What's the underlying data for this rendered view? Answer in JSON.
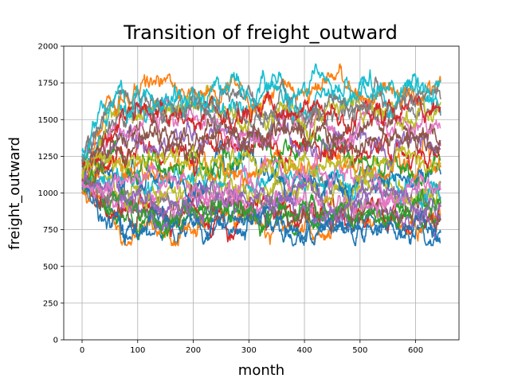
{
  "chart_data": {
    "type": "line",
    "title": "Transition of freight_outward",
    "xlabel": "month",
    "ylabel": "freight_outward",
    "xlim": [
      -33,
      678
    ],
    "ylim": [
      0,
      2000
    ],
    "xticks": [
      0,
      100,
      200,
      300,
      400,
      500,
      600
    ],
    "yticks": [
      0,
      250,
      500,
      750,
      1000,
      1250,
      1500,
      1750,
      2000
    ],
    "grid": true,
    "legend": "none",
    "n_points": 646,
    "x_range": [
      0,
      645
    ],
    "colors": [
      "#1f77b4",
      "#ff7f0e",
      "#2ca02c",
      "#d62728",
      "#9467bd",
      "#8c564b",
      "#e377c2",
      "#7f7f7f",
      "#bcbd22",
      "#17becf"
    ],
    "series": [
      {
        "start": 1050,
        "level": 760,
        "min": 640,
        "max": 1880
      },
      {
        "start": 1080,
        "level": 790,
        "min": 640,
        "max": 1880
      },
      {
        "start": 1100,
        "level": 820,
        "min": 640,
        "max": 1880
      },
      {
        "start": 1020,
        "level": 850,
        "min": 640,
        "max": 1880
      },
      {
        "start": 1120,
        "level": 880,
        "min": 640,
        "max": 1880
      },
      {
        "start": 1060,
        "level": 910,
        "min": 640,
        "max": 1880
      },
      {
        "start": 1140,
        "level": 950,
        "min": 640,
        "max": 1880
      },
      {
        "start": 1000,
        "level": 990,
        "min": 640,
        "max": 1880
      },
      {
        "start": 1160,
        "level": 1030,
        "min": 640,
        "max": 1880
      },
      {
        "start": 1090,
        "level": 1080,
        "min": 640,
        "max": 1880
      },
      {
        "start": 1180,
        "level": 1130,
        "min": 640,
        "max": 1880
      },
      {
        "start": 1040,
        "level": 1180,
        "min": 640,
        "max": 1880
      },
      {
        "start": 1200,
        "level": 1240,
        "min": 640,
        "max": 1880
      },
      {
        "start": 1110,
        "level": 1300,
        "min": 640,
        "max": 1880
      },
      {
        "start": 1220,
        "level": 1360,
        "min": 640,
        "max": 1880
      },
      {
        "start": 1070,
        "level": 1420,
        "min": 640,
        "max": 1880
      },
      {
        "start": 1150,
        "level": 1480,
        "min": 640,
        "max": 1880
      },
      {
        "start": 1250,
        "level": 1540,
        "min": 640,
        "max": 1880
      },
      {
        "start": 1130,
        "level": 1600,
        "min": 640,
        "max": 1880
      },
      {
        "start": 1280,
        "level": 1660,
        "min": 640,
        "max": 1880
      },
      {
        "start": 1010,
        "level": 780,
        "min": 640,
        "max": 1880
      },
      {
        "start": 1190,
        "level": 1700,
        "min": 640,
        "max": 1880
      },
      {
        "start": 1030,
        "level": 870,
        "min": 640,
        "max": 1880
      },
      {
        "start": 1170,
        "level": 1560,
        "min": 640,
        "max": 1880
      },
      {
        "start": 1060,
        "level": 960,
        "min": 640,
        "max": 1880
      },
      {
        "start": 1210,
        "level": 1400,
        "min": 640,
        "max": 1880
      },
      {
        "start": 1080,
        "level": 1050,
        "min": 640,
        "max": 1880
      },
      {
        "start": 1240,
        "level": 1620,
        "min": 640,
        "max": 1880
      },
      {
        "start": 1120,
        "level": 1200,
        "min": 640,
        "max": 1880
      },
      {
        "start": 1300,
        "level": 1720,
        "min": 640,
        "max": 1880
      }
    ]
  }
}
